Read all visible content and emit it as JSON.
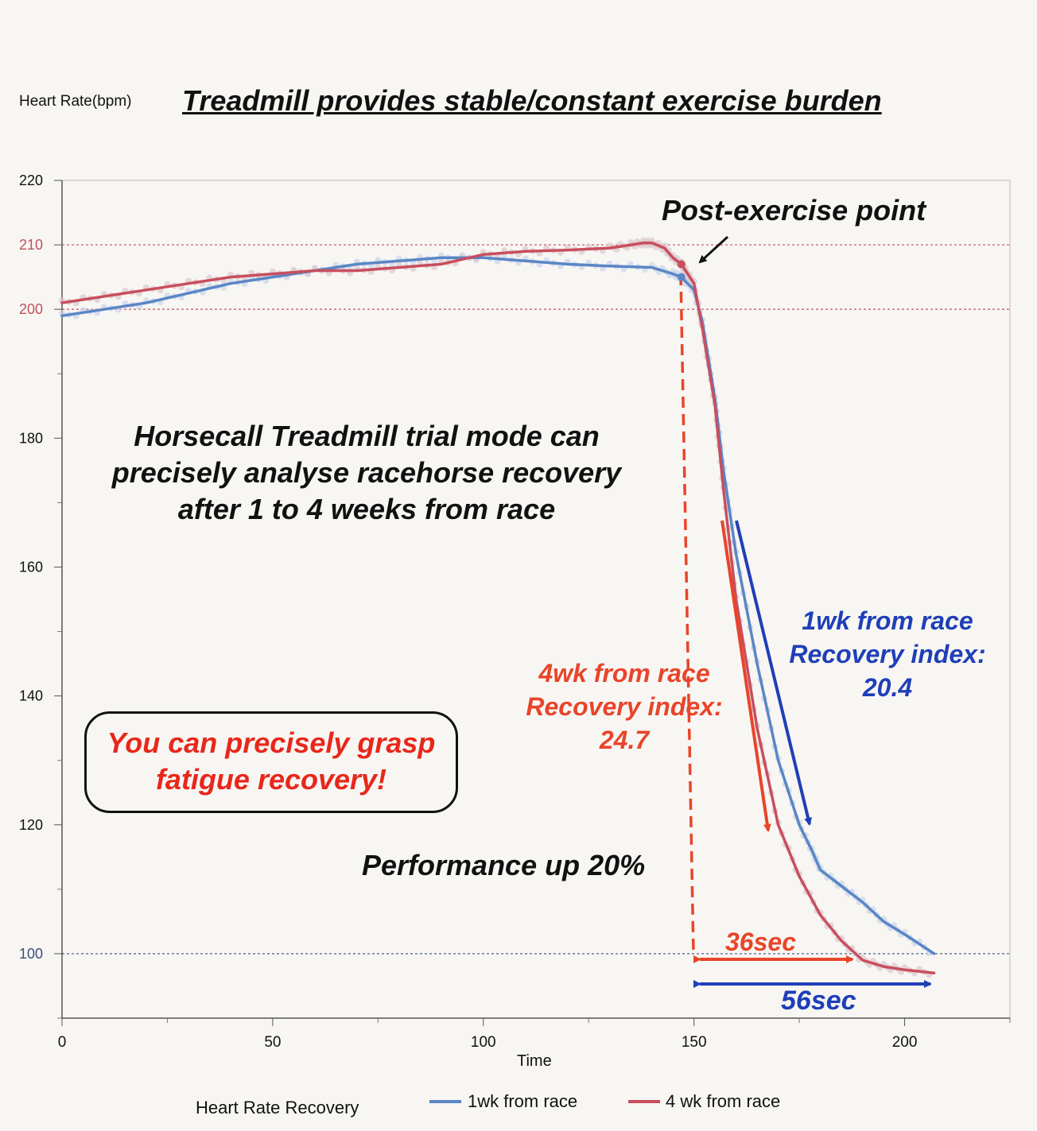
{
  "chart_data": {
    "type": "line",
    "title": "Treadmill provides stable/constant exercise burden",
    "ylabel": "Heart Rate(bpm)",
    "xlabel": "Time",
    "xlim": [
      0,
      225
    ],
    "ylim": [
      90,
      220
    ],
    "x_ticks": [
      0,
      50,
      100,
      150,
      200
    ],
    "y_ticks": [
      100,
      120,
      140,
      160,
      180,
      200,
      210,
      220
    ],
    "grid": "dotted reference lines at 210, 200 and 100",
    "reference_lines": [
      {
        "y": 210,
        "color": "#c0505c"
      },
      {
        "y": 200,
        "color": "#c0505c"
      },
      {
        "y": 100,
        "color": "#3a4f7a"
      }
    ],
    "legend": {
      "title": "Heart Rate Recovery",
      "placement": "bottom",
      "entries": [
        {
          "label": "1wk from race",
          "color": "#5a86c5"
        },
        {
          "label": "4 wk from race",
          "color": "#c84e5e"
        }
      ]
    },
    "series": [
      {
        "name": "1wk from race",
        "color": "#5a86c5",
        "x": [
          0,
          10,
          20,
          30,
          40,
          50,
          60,
          70,
          80,
          90,
          100,
          110,
          120,
          130,
          140,
          145,
          147,
          150,
          152,
          155,
          157,
          160,
          165,
          170,
          175,
          178,
          180,
          185,
          190,
          195,
          200,
          207
        ],
        "y": [
          199,
          200,
          201,
          202.5,
          204,
          205,
          206,
          207,
          207.5,
          208,
          208,
          207.5,
          207,
          206.7,
          206.5,
          205.5,
          205,
          203,
          198,
          186,
          175,
          162,
          145,
          130,
          120,
          116,
          113,
          110.5,
          108,
          105,
          103,
          100
        ]
      },
      {
        "name": "4 wk from race",
        "color": "#c84e5e",
        "x": [
          0,
          10,
          20,
          30,
          40,
          50,
          60,
          70,
          80,
          90,
          100,
          110,
          120,
          130,
          135,
          138,
          140,
          143,
          145,
          147,
          148,
          150,
          152,
          155,
          157,
          160,
          165,
          170,
          175,
          180,
          185,
          190,
          195,
          200,
          207
        ],
        "y": [
          201,
          202,
          203,
          204,
          205,
          205.5,
          206,
          206,
          206.5,
          207,
          208.5,
          209,
          209.2,
          209.5,
          210,
          210.3,
          210.3,
          209.5,
          208,
          207,
          206,
          204,
          197,
          185,
          172,
          155,
          135,
          120,
          112,
          106,
          102,
          99,
          98,
          97.5,
          97
        ]
      }
    ],
    "markers": [
      {
        "series": "1wk from race",
        "x": 147,
        "y": 205
      },
      {
        "series": "4 wk from race",
        "x": 147,
        "y": 207
      }
    ],
    "annotations": {
      "post_exercise": "Post-exercise point",
      "main_note": "Horsecall Treadmill trial mode can\nprecisely analyse racehorse recovery\nafter 1 to 4 weeks from race",
      "callout": "You can precisely grasp\nfatigue recovery!",
      "performance": "Performance up 20%",
      "wk4_recovery": "4wk from race\nRecovery index:\n24.7",
      "wk1_recovery": "1wk from race\nRecovery index:\n20.4",
      "sec36": "36sec",
      "sec56": "56sec"
    },
    "colors": {
      "red_annotation": "#e8452a",
      "blue_annotation": "#1f3fb8",
      "callout_text": "#e8271b"
    }
  }
}
